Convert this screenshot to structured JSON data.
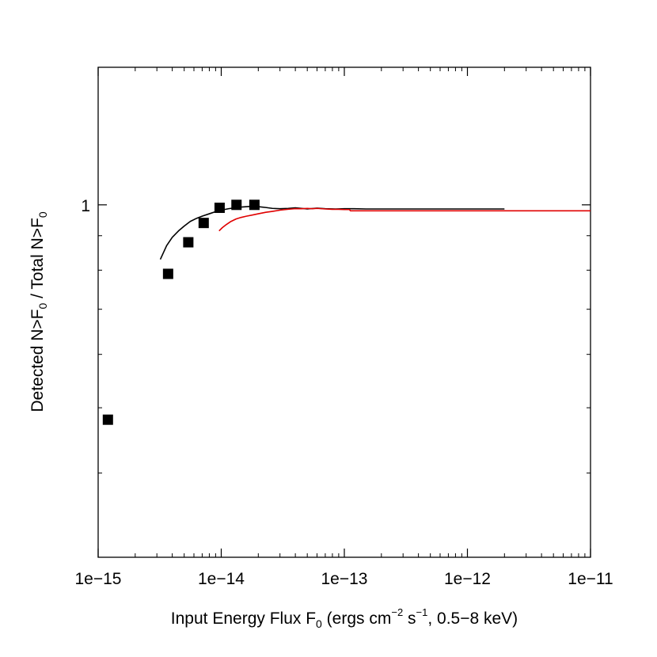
{
  "chart_data": {
    "type": "scatter",
    "title": "",
    "x_scale": "log",
    "y_scale": "log",
    "xlim": [
      1e-15,
      1e-11
    ],
    "ylim": [
      0.3,
      1.6
    ],
    "x_ticks": [
      {
        "value": 1e-15,
        "label": "1e−15"
      },
      {
        "value": 1e-14,
        "label": "1e−14"
      },
      {
        "value": 1e-13,
        "label": "1e−13"
      },
      {
        "value": 1e-12,
        "label": "1e−12"
      },
      {
        "value": 1e-11,
        "label": "1e−11"
      }
    ],
    "y_ticks": [
      {
        "value": 1,
        "label": "1"
      }
    ],
    "y_minor_ticks": [
      0.4,
      0.5,
      0.6,
      0.7,
      0.8,
      0.9
    ],
    "xlabel": {
      "main": "Input Energy Flux F",
      "sub": "0",
      "rest1": " (ergs cm",
      "sup1": "−2",
      "rest2": " s",
      "sup2": "−1",
      "rest3": ", 0.5−8 keV)"
    },
    "ylabel": {
      "part1": "Detected N>F",
      "sub1": "0",
      "part2": " / Total N>F",
      "sub2": "0"
    },
    "grid": false,
    "legend": "none",
    "series": [
      {
        "kind": "points",
        "color": "#000000",
        "marker": "square",
        "x": [
          1.2e-15,
          3.7e-15,
          5.4e-15,
          7.2e-15,
          9.7e-15,
          1.33e-14,
          1.86e-14
        ],
        "y": [
          0.48,
          0.79,
          0.88,
          0.94,
          0.99,
          1.0,
          1.0
        ]
      },
      {
        "kind": "line",
        "color": "#000000",
        "x": [
          3.2e-15,
          3.6e-15,
          4e-15,
          4.5e-15,
          5e-15,
          5.6e-15,
          6.3e-15,
          7.1e-15,
          8e-15,
          9e-15,
          1e-14,
          1.15e-14,
          1.3e-14,
          1.5e-14,
          1.75e-14,
          2e-14,
          2.3e-14,
          2.6e-14,
          3e-14,
          3.5e-14,
          4e-14,
          4.5e-14,
          5e-14,
          6e-14,
          7e-14,
          8.5e-14,
          1e-13,
          1.2e-13,
          1.5e-13,
          2e-13,
          3e-13,
          5e-13,
          1e-12,
          2e-12
        ],
        "y": [
          0.83,
          0.87,
          0.895,
          0.915,
          0.93,
          0.945,
          0.955,
          0.963,
          0.97,
          0.977,
          0.982,
          0.987,
          0.99,
          0.993,
          0.995,
          0.994,
          0.991,
          0.988,
          0.987,
          0.988,
          0.99,
          0.988,
          0.986,
          0.989,
          0.987,
          0.986,
          0.987,
          0.987,
          0.986,
          0.986,
          0.986,
          0.986,
          0.986,
          0.986
        ]
      },
      {
        "kind": "line",
        "color": "#e00000",
        "x": [
          9.6e-15,
          1.02e-14,
          1.1e-14,
          1.2e-14,
          1.32e-14,
          1.45e-14,
          1.6e-14,
          1.8e-14,
          2e-14,
          2.3e-14,
          2.6e-14,
          3e-14,
          3.5e-14,
          4e-14,
          4.5e-14,
          5e-14,
          5.5e-14,
          6e-14,
          7e-14,
          8e-14,
          9e-14,
          1e-13,
          1.1e-13,
          1.12e-13,
          1.5e-13,
          3e-13,
          1e-12,
          3e-12,
          1e-11
        ],
        "y": [
          0.915,
          0.925,
          0.935,
          0.945,
          0.953,
          0.958,
          0.962,
          0.966,
          0.97,
          0.975,
          0.978,
          0.982,
          0.985,
          0.987,
          0.987,
          0.988,
          0.987,
          0.988,
          0.986,
          0.985,
          0.985,
          0.984,
          0.984,
          0.98,
          0.98,
          0.98,
          0.98,
          0.98,
          0.98
        ]
      }
    ]
  }
}
